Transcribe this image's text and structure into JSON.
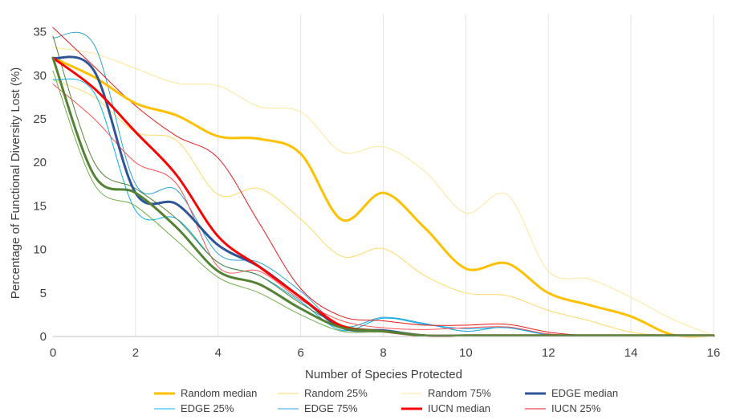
{
  "chart_data": {
    "type": "line",
    "xlabel": "Number of Species Protected",
    "ylabel": "Percentage of Functional Diversity Lost (%)",
    "xlim": [
      0,
      16
    ],
    "ylim": [
      0,
      37
    ],
    "xticks": [
      0,
      2,
      4,
      6,
      8,
      10,
      12,
      14,
      16
    ],
    "yticks": [
      0,
      5,
      10,
      15,
      20,
      25,
      30,
      35
    ],
    "grid": "vertical",
    "legend_position": "bottom",
    "x": [
      0,
      1,
      2,
      3,
      4,
      5,
      6,
      7,
      8,
      9,
      10,
      11,
      12,
      13,
      14,
      15,
      16
    ],
    "series": [
      {
        "name": "Random median",
        "color": "#FFC000",
        "width": 3,
        "values": [
          32.0,
          29.8,
          26.8,
          25.4,
          23.0,
          22.7,
          21.0,
          13.4,
          16.5,
          12.5,
          7.8,
          8.4,
          5.0,
          3.6,
          2.3,
          0.2,
          0.1
        ]
      },
      {
        "name": "Random 25%",
        "color": "#FFD966",
        "width": 1,
        "values": [
          29.5,
          27.5,
          23.5,
          22.5,
          16.3,
          17.0,
          13.5,
          9.2,
          10.1,
          7.0,
          5.0,
          4.7,
          3.0,
          1.8,
          0.5,
          0.1,
          0.0
        ]
      },
      {
        "name": "Random 75%",
        "color": "#FFE699",
        "width": 1,
        "values": [
          33.2,
          32.5,
          30.8,
          29.1,
          28.8,
          26.4,
          25.8,
          21.2,
          21.8,
          19.0,
          14.2,
          16.3,
          7.5,
          6.6,
          4.5,
          2.0,
          0.1
        ]
      },
      {
        "name": "EDGE median",
        "color": "#2F5597",
        "width": 3,
        "values": [
          32.0,
          30.5,
          16.5,
          15.2,
          10.5,
          8.0,
          4.5,
          1.0,
          0.7,
          0.1,
          0.1,
          0.1,
          0.1,
          0.1,
          0.1,
          0.1,
          0.1
        ]
      },
      {
        "name": "EDGE 25%",
        "color": "#00B0F0",
        "width": 1,
        "values": [
          29.5,
          28.0,
          14.5,
          13.5,
          8.5,
          7.0,
          4.0,
          0.7,
          2.1,
          1.4,
          0.9,
          1.0,
          0.2,
          0.1,
          0.1,
          0.1,
          0.1
        ]
      },
      {
        "name": "EDGE 75%",
        "color": "#29A3D6",
        "width": 1,
        "values": [
          34.3,
          33.5,
          17.5,
          16.8,
          9.5,
          8.5,
          5.2,
          1.2,
          2.2,
          1.5,
          0.6,
          1.1,
          0.2,
          0.1,
          0.1,
          0.1,
          0.1
        ]
      },
      {
        "name": "IUCN median",
        "color": "#FF0000",
        "width": 3,
        "values": [
          32.0,
          28.5,
          23.5,
          18.5,
          11.5,
          8.0,
          4.5,
          1.2,
          0.6,
          0.1,
          0.1,
          0.1,
          0.1,
          0.1,
          0.1,
          0.1,
          0.1
        ]
      },
      {
        "name": "IUCN 25%",
        "color": "#E31A1C",
        "width": 1,
        "values": [
          35.5,
          31.0,
          26.5,
          23.0,
          20.5,
          13.0,
          5.5,
          2.3,
          1.8,
          1.3,
          1.3,
          1.4,
          0.5,
          0.1,
          0.1,
          0.1,
          0.1
        ]
      },
      {
        "name": "",
        "color": "#FF5050",
        "width": 1,
        "values": [
          29.0,
          25.0,
          20.0,
          17.5,
          8.0,
          7.5,
          4.2,
          1.8,
          1.0,
          0.8,
          1.0,
          1.1,
          0.3,
          0.1,
          0.1,
          0.1,
          0.1
        ]
      },
      {
        "name": "",
        "color": "#548235",
        "width": 3,
        "values": [
          32.0,
          18.5,
          16.5,
          12.5,
          7.5,
          6.0,
          3.2,
          1.0,
          0.6,
          0.1,
          0.1,
          0.1,
          0.1,
          0.1,
          0.1,
          0.1,
          0.1
        ]
      },
      {
        "name": "",
        "color": "#70AD47",
        "width": 1,
        "values": [
          30.5,
          17.5,
          15.0,
          11.0,
          6.8,
          5.0,
          2.5,
          0.6,
          0.5,
          0.1,
          0.1,
          0.1,
          0.1,
          0.1,
          0.1,
          0.1,
          0.1
        ]
      },
      {
        "name": "",
        "color": "#548235",
        "width": 1,
        "values": [
          34.5,
          20.0,
          17.0,
          13.5,
          8.5,
          7.0,
          3.8,
          1.3,
          0.7,
          0.1,
          0.1,
          0.1,
          0.1,
          0.1,
          0.1,
          0.1,
          0.1
        ]
      }
    ]
  }
}
